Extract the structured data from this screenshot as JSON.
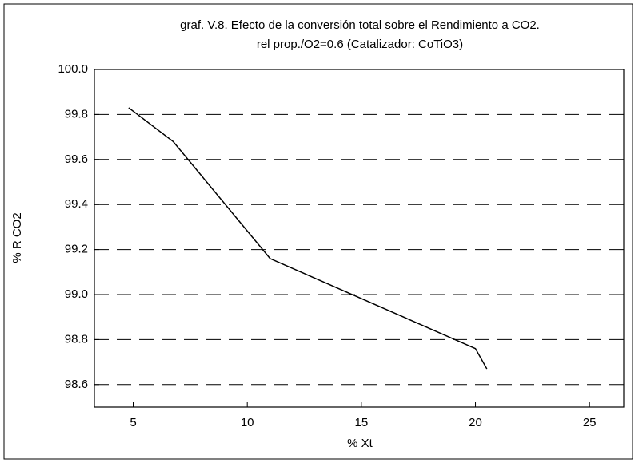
{
  "chart_data": {
    "type": "line",
    "title": "graf. V.8. Efecto de la conversión total sobre el Rendimiento a CO2.",
    "subtitle": "rel prop./O2=0.6 (Catalizador: CoTiO3)",
    "xlabel": "% Xt",
    "ylabel": "% R CO2",
    "x": [
      4.8,
      6.75,
      11.0,
      20.0,
      20.5
    ],
    "series": [
      {
        "name": "% R CO2",
        "color": "#000000",
        "values": [
          99.83,
          99.68,
          99.16,
          98.76,
          98.67
        ]
      }
    ],
    "xlim": [
      3.3,
      26.5
    ],
    "xticks": [
      5,
      10,
      15,
      20,
      25
    ],
    "ylim": [
      98.5,
      100.0
    ],
    "yticks": [
      {
        "value": 100.0,
        "label": "100.0"
      },
      99.8,
      99.6,
      99.4,
      99.2,
      {
        "value": 99.0,
        "label": "99.0"
      },
      98.8,
      98.6
    ],
    "grid": true
  }
}
